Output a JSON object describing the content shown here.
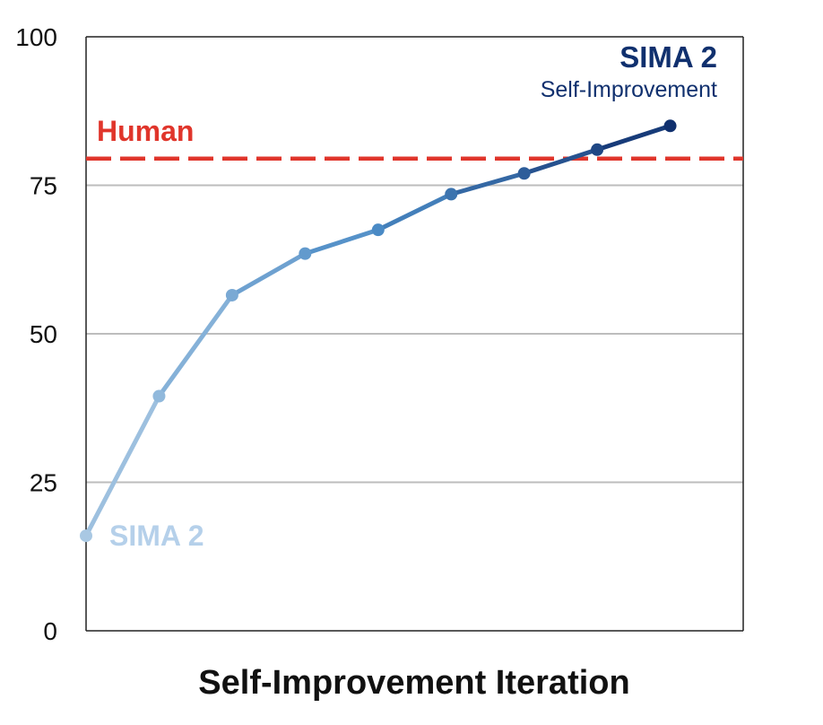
{
  "chart_data": {
    "type": "line",
    "title": "",
    "xlabel": "Self-Improvement Iteration",
    "ylabel": "",
    "ylim": [
      0,
      100
    ],
    "yticks": [
      0,
      25,
      50,
      75,
      100
    ],
    "grid": true,
    "x": [
      0,
      1,
      2,
      3,
      4,
      5,
      6,
      7,
      8
    ],
    "series": [
      {
        "name": "SIMA 2 Self-Improvement",
        "values": [
          16,
          39.5,
          56.5,
          63.5,
          67.5,
          73.5,
          77,
          81,
          85
        ]
      }
    ],
    "reference_line": {
      "label": "Human",
      "value": 79.5,
      "style": "dashed"
    },
    "annotations": {
      "start_label": "SIMA 2",
      "end_title": "SIMA 2",
      "end_subtitle": "Self-Improvement"
    },
    "colors": {
      "series_start": "#a9c8e3",
      "series_mid": "#4a8ac5",
      "series_end": "#10306e",
      "start_label": "#b5d0ea",
      "reference": "#e0352b",
      "grid": "#bdbdbd",
      "axis": "#222222"
    }
  }
}
